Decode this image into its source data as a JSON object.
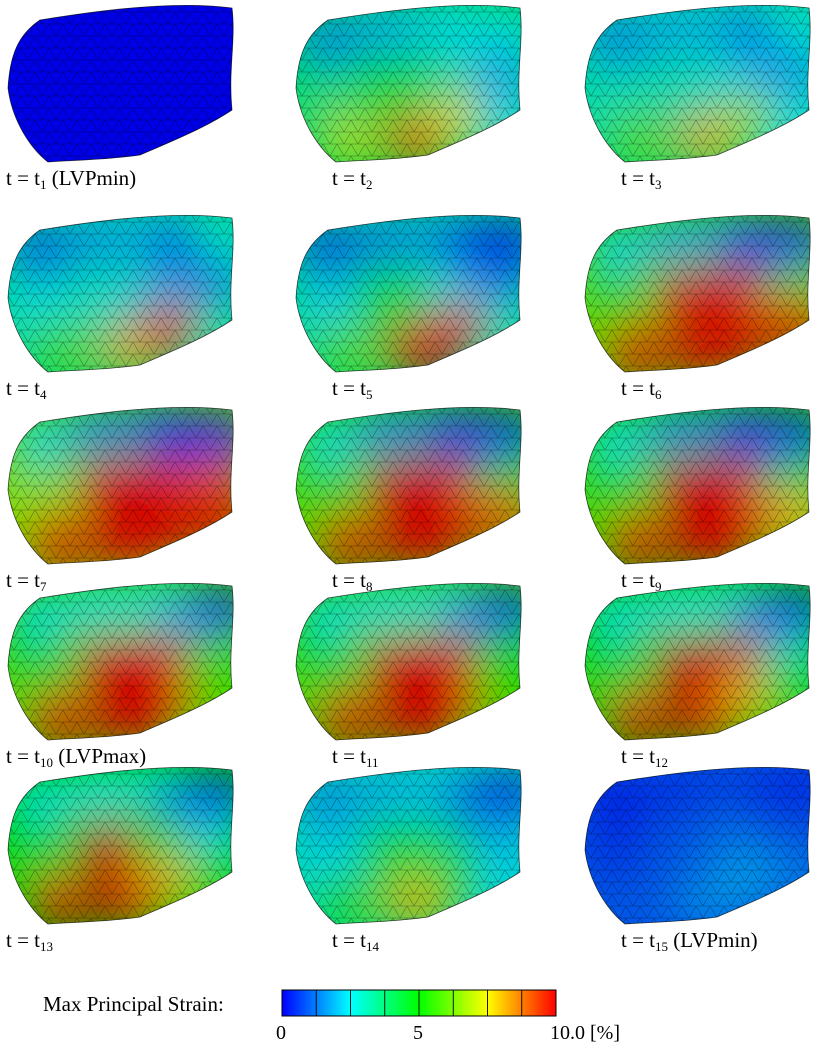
{
  "panels": [
    {
      "t_prefix": "t = t",
      "sub": "1",
      "suffix": " (LVPmin)",
      "c": [
        0,
        0,
        0,
        0,
        0,
        0,
        0,
        0,
        0,
        0,
        0,
        0,
        0
      ]
    },
    {
      "t_prefix": "t = t",
      "sub": "2",
      "suffix": "",
      "c": [
        1.6,
        2.0,
        2.4,
        2.6,
        2.6,
        3.6,
        4.6,
        3.2,
        1.8,
        7.0,
        8.8,
        7.4,
        2.4
      ]
    },
    {
      "t_prefix": "t = t",
      "sub": "3",
      "suffix": "",
      "c": [
        1.6,
        2.0,
        2.0,
        1.2,
        2.6,
        3.0,
        3.0,
        2.4,
        1.6,
        6.0,
        8.0,
        6.8,
        2.6
      ]
    },
    {
      "t_prefix": "t = t",
      "sub": "4",
      "suffix": "",
      "c": [
        1.2,
        1.8,
        2.0,
        0.6,
        2.8,
        2.6,
        2.8,
        2.0,
        1.4,
        5.8,
        8.0,
        9.4,
        3.2
      ]
    },
    {
      "t_prefix": "t = t",
      "sub": "5",
      "suffix": "",
      "c": [
        1.0,
        1.6,
        1.8,
        0.4,
        0.6,
        2.4,
        5.0,
        2.6,
        1.4,
        6.0,
        10,
        10,
        3.0
      ]
    },
    {
      "t_prefix": "t = t",
      "sub": "6",
      "suffix": "",
      "c": [
        2.4,
        2.0,
        1.6,
        0.3,
        0.6,
        5.6,
        9.6,
        10,
        6.0,
        10,
        10,
        10,
        10
      ]
    },
    {
      "t_prefix": "t = t",
      "sub": "7",
      "suffix": "",
      "c": [
        2.6,
        1.6,
        1.2,
        0.3,
        0.6,
        6.6,
        10,
        10,
        9.0,
        10,
        10,
        10,
        10
      ]
    },
    {
      "t_prefix": "t = t",
      "sub": "8",
      "suffix": "",
      "c": [
        2.6,
        1.6,
        1.2,
        0.3,
        0.6,
        5.6,
        10,
        10,
        4.6,
        10,
        10,
        10,
        9.0
      ]
    },
    {
      "t_prefix": "t = t",
      "sub": "9",
      "suffix": "",
      "c": [
        2.6,
        1.6,
        1.2,
        0.3,
        0.6,
        5.4,
        10,
        10,
        4.0,
        10,
        10,
        10,
        8.0
      ]
    },
    {
      "t_prefix": "t = t",
      "sub": "10",
      "suffix": " (LVPmax)",
      "c": [
        2.6,
        2.6,
        2.6,
        2.0,
        0.6,
        4.6,
        10,
        10,
        5.8,
        10,
        10,
        10,
        5.6
      ]
    },
    {
      "t_prefix": "t = t",
      "sub": "11",
      "suffix": "",
      "c": [
        2.6,
        2.6,
        2.6,
        1.6,
        0.8,
        4.6,
        10,
        10,
        5.0,
        10,
        10,
        10,
        5.4
      ]
    },
    {
      "t_prefix": "t = t",
      "sub": "12",
      "suffix": "",
      "c": [
        2.6,
        2.6,
        2.6,
        1.4,
        0.8,
        4.4,
        10,
        9.4,
        3.0,
        10,
        10,
        8.0,
        4.6
      ]
    },
    {
      "t_prefix": "t = t",
      "sub": "13",
      "suffix": "",
      "c": [
        2.6,
        2.6,
        2.6,
        1.4,
        0.8,
        4.6,
        10,
        5.6,
        2.6,
        10,
        10,
        8.0,
        4.6
      ]
    },
    {
      "t_prefix": "t = t",
      "sub": "14",
      "suffix": "",
      "c": [
        1.6,
        2.0,
        2.2,
        1.0,
        0.6,
        2.4,
        4.6,
        3.6,
        2.0,
        5.4,
        8.0,
        5.4,
        2.4
      ]
    },
    {
      "t_prefix": "t = t",
      "sub": "15",
      "suffix": " (LVPmin)",
      "c": [
        0.3,
        0.6,
        0.8,
        0.6,
        0.4,
        0.6,
        1.0,
        1.4,
        1.0,
        1.0,
        1.6,
        1.8,
        1.4
      ]
    }
  ],
  "legend": {
    "title": "Max Principal Strain:",
    "ticks": [
      {
        "value": 0,
        "label": "0"
      },
      {
        "value": 5,
        "label": "5"
      },
      {
        "value": 10,
        "label": "10.0 [%]"
      }
    ],
    "range": [
      0,
      10
    ],
    "segments": 8,
    "colormap": [
      "#0000ff",
      "#00ffff",
      "#00ff00",
      "#ffff00",
      "#ff0000"
    ]
  }
}
